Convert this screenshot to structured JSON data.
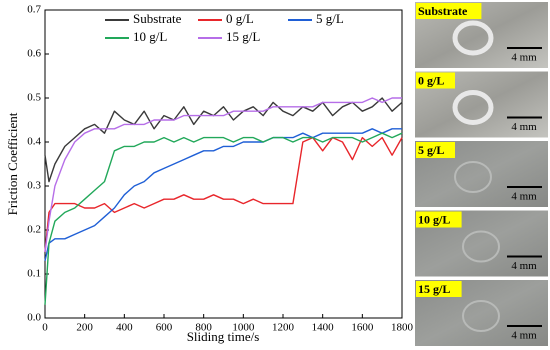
{
  "chart_data": {
    "type": "line",
    "x_label": "Sliding time/s",
    "y_label": "Friction Coefficient",
    "x": [
      0,
      20,
      50,
      100,
      150,
      200,
      250,
      300,
      350,
      400,
      450,
      500,
      550,
      600,
      650,
      700,
      750,
      800,
      850,
      900,
      950,
      1000,
      1050,
      1100,
      1150,
      1200,
      1250,
      1300,
      1350,
      1400,
      1450,
      1500,
      1550,
      1600,
      1650,
      1700,
      1750,
      1800
    ],
    "series": [
      {
        "name": "Substrate",
        "color": "#3a3a3a",
        "values": [
          0.37,
          0.31,
          0.35,
          0.39,
          0.41,
          0.43,
          0.44,
          0.42,
          0.47,
          0.45,
          0.44,
          0.47,
          0.43,
          0.46,
          0.45,
          0.48,
          0.44,
          0.47,
          0.46,
          0.48,
          0.45,
          0.47,
          0.48,
          0.46,
          0.49,
          0.47,
          0.46,
          0.48,
          0.47,
          0.49,
          0.46,
          0.48,
          0.49,
          0.47,
          0.48,
          0.5,
          0.47,
          0.49
        ]
      },
      {
        "name": "0 g/L",
        "color": "#e8262b",
        "values": [
          0.15,
          0.24,
          0.26,
          0.26,
          0.26,
          0.25,
          0.25,
          0.26,
          0.24,
          0.25,
          0.26,
          0.25,
          0.26,
          0.27,
          0.27,
          0.28,
          0.27,
          0.27,
          0.28,
          0.27,
          0.27,
          0.26,
          0.27,
          0.26,
          0.26,
          0.26,
          0.26,
          0.4,
          0.41,
          0.38,
          0.41,
          0.4,
          0.36,
          0.41,
          0.39,
          0.41,
          0.37,
          0.41
        ]
      },
      {
        "name": "5 g/L",
        "color": "#1f5fd6",
        "values": [
          0.13,
          0.17,
          0.18,
          0.18,
          0.19,
          0.2,
          0.21,
          0.23,
          0.25,
          0.28,
          0.3,
          0.31,
          0.33,
          0.34,
          0.35,
          0.36,
          0.37,
          0.38,
          0.38,
          0.39,
          0.39,
          0.4,
          0.4,
          0.4,
          0.41,
          0.41,
          0.41,
          0.42,
          0.41,
          0.42,
          0.42,
          0.42,
          0.42,
          0.42,
          0.43,
          0.42,
          0.43,
          0.43
        ]
      },
      {
        "name": "10 g/L",
        "color": "#22a85a",
        "values": [
          0.03,
          0.17,
          0.22,
          0.24,
          0.25,
          0.27,
          0.29,
          0.31,
          0.38,
          0.39,
          0.39,
          0.4,
          0.4,
          0.41,
          0.4,
          0.41,
          0.4,
          0.41,
          0.41,
          0.41,
          0.4,
          0.41,
          0.41,
          0.4,
          0.41,
          0.41,
          0.4,
          0.41,
          0.41,
          0.4,
          0.41,
          0.41,
          0.41,
          0.4,
          0.41,
          0.42,
          0.41,
          0.42
        ]
      },
      {
        "name": "15 g/L",
        "color": "#b66ee8",
        "values": [
          0.15,
          0.22,
          0.3,
          0.36,
          0.4,
          0.42,
          0.43,
          0.43,
          0.43,
          0.44,
          0.44,
          0.44,
          0.45,
          0.45,
          0.45,
          0.46,
          0.46,
          0.46,
          0.46,
          0.46,
          0.47,
          0.47,
          0.47,
          0.47,
          0.48,
          0.48,
          0.48,
          0.48,
          0.48,
          0.49,
          0.49,
          0.49,
          0.49,
          0.49,
          0.5,
          0.49,
          0.5,
          0.5
        ]
      }
    ],
    "xlim": [
      0,
      1800
    ],
    "xticks": [
      0,
      200,
      400,
      600,
      800,
      1000,
      1200,
      1400,
      1600,
      1800
    ],
    "ylim": [
      0,
      0.7
    ],
    "yticks": [
      {
        "value": 0,
        "label": "0.0"
      },
      0.1,
      0.2,
      0.3,
      0.4,
      0.5,
      0.6,
      0.7
    ]
  },
  "photos": [
    {
      "label": "Substrate",
      "scale": "4 mm"
    },
    {
      "label": "0 g/L",
      "scale": "4 mm"
    },
    {
      "label": "5 g/L",
      "scale": "4 mm"
    },
    {
      "label": "10 g/L",
      "scale": "4 mm"
    },
    {
      "label": "15 g/L",
      "scale": "4 mm"
    }
  ]
}
